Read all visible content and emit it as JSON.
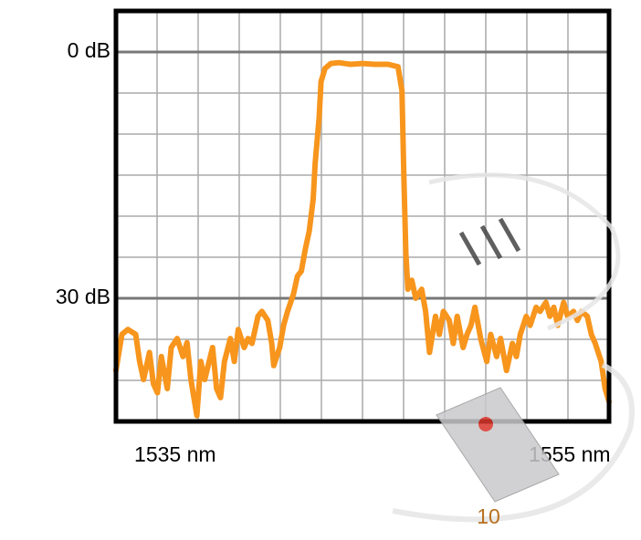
{
  "chart_data": {
    "type": "line",
    "x": [
      1532.0,
      1532.3,
      1532.6,
      1533.0,
      1533.2,
      1533.4,
      1533.7,
      1533.9,
      1534.1,
      1534.3,
      1534.6,
      1534.8,
      1535.1,
      1535.4,
      1535.6,
      1535.8,
      1536.1,
      1536.3,
      1536.5,
      1536.9,
      1537.1,
      1537.3,
      1537.5,
      1537.8,
      1538.0,
      1538.2,
      1538.5,
      1538.7,
      1538.9,
      1539.2,
      1539.4,
      1539.7,
      1539.9,
      1540.0,
      1540.3,
      1540.5,
      1540.7,
      1541.0,
      1541.2,
      1541.4,
      1541.6,
      1541.8,
      1542.0,
      1542.1,
      1542.3,
      1542.4,
      1542.6,
      1542.9,
      1543.3,
      1543.9,
      1544.5,
      1545.1,
      1545.8,
      1546.3,
      1546.5,
      1546.6,
      1546.7,
      1546.8,
      1547.0,
      1547.2,
      1547.5,
      1547.7,
      1547.9,
      1548.2,
      1548.4,
      1548.6,
      1548.9,
      1549.1,
      1549.3,
      1549.6,
      1549.8,
      1550.0,
      1550.2,
      1550.5,
      1550.8,
      1551.0,
      1551.3,
      1551.5,
      1551.8,
      1552.1,
      1552.3,
      1552.5,
      1552.8,
      1553.0,
      1553.3,
      1553.5,
      1553.8,
      1554.0,
      1554.2,
      1554.4,
      1554.7,
      1554.9,
      1555.2,
      1555.4,
      1555.6,
      1555.9,
      1556.1,
      1556.3,
      1556.6,
      1556.8,
      1557.0
    ],
    "values": [
      38.8,
      34.4,
      33.8,
      34.4,
      37.7,
      39.9,
      36.6,
      40.4,
      41.5,
      37.1,
      41.0,
      36.0,
      34.9,
      37.1,
      35.4,
      39.9,
      44.3,
      37.7,
      39.9,
      36.0,
      41.0,
      42.1,
      37.7,
      34.9,
      37.7,
      33.8,
      36.0,
      34.9,
      35.5,
      32.2,
      31.6,
      32.7,
      35.5,
      38.2,
      36.0,
      33.3,
      31.6,
      29.5,
      27.3,
      26.7,
      24.0,
      21.8,
      17.9,
      13.5,
      8.0,
      3.6,
      2.0,
      1.4,
      1.3,
      1.5,
      1.4,
      1.5,
      1.5,
      1.8,
      4.7,
      15.7,
      24.5,
      28.9,
      27.8,
      30.0,
      28.9,
      31.6,
      36.6,
      32.2,
      34.4,
      31.6,
      32.7,
      35.5,
      32.2,
      36.0,
      34.4,
      33.3,
      31.1,
      35.0,
      37.7,
      34.4,
      37.1,
      34.9,
      38.8,
      35.5,
      37.1,
      34.4,
      32.2,
      33.3,
      31.1,
      31.6,
      30.5,
      32.2,
      31.1,
      33.3,
      30.5,
      32.2,
      31.6,
      32.7,
      31.6,
      32.2,
      34.4,
      35.5,
      37.7,
      41.0,
      42.6
    ],
    "color": "#f7951d",
    "xlim": [
      1532,
      1557
    ],
    "xticks": [
      {
        "value": 1535,
        "label": "1535 nm"
      },
      {
        "value": 1555,
        "label": "1555 nm"
      }
    ],
    "ylim": [
      45,
      -5
    ],
    "yticks": [
      {
        "value": 0,
        "label": "0 dB"
      },
      {
        "value": 30,
        "label": "30 dB"
      }
    ],
    "grid": true,
    "annotation": "10"
  }
}
